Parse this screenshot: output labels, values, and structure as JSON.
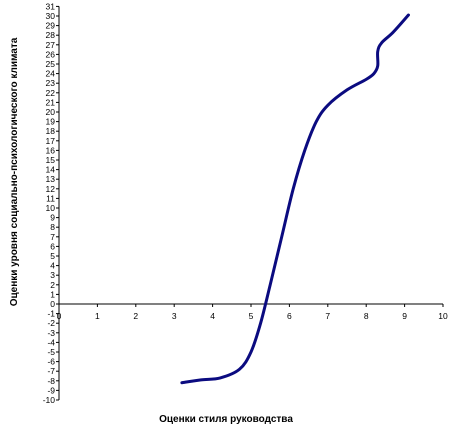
{
  "chart_data": {
    "type": "line",
    "title": "",
    "xlabel": "Оценки стиля руководства",
    "ylabel": "Оценки уровня социально-психологического климата",
    "xlim": [
      0,
      10
    ],
    "ylim": [
      -10,
      31
    ],
    "x_ticks": [
      0,
      1,
      2,
      3,
      4,
      5,
      6,
      7,
      8,
      9,
      10
    ],
    "y_ticks": [
      -10,
      -9,
      -8,
      -7,
      -6,
      -5,
      -4,
      -3,
      -2,
      -1,
      0,
      1,
      2,
      3,
      4,
      5,
      6,
      7,
      8,
      9,
      10,
      11,
      12,
      13,
      14,
      15,
      16,
      17,
      18,
      19,
      20,
      21,
      22,
      23,
      24,
      25,
      26,
      27,
      28,
      29,
      30,
      31
    ],
    "grid": false,
    "series": [
      {
        "color": "#0b0b80",
        "x": [
          3.2,
          3.7,
          4.2,
          4.7,
          5.0,
          5.25,
          5.5,
          5.8,
          6.1,
          6.4,
          6.7,
          7.0,
          7.5,
          8.0,
          8.2,
          8.3,
          8.3,
          8.4,
          8.7,
          9.1
        ],
        "y": [
          -8.2,
          -7.9,
          -7.7,
          -6.8,
          -5.0,
          -2.0,
          2.0,
          7.0,
          12.0,
          16.0,
          19.0,
          20.7,
          22.3,
          23.4,
          24.0,
          24.8,
          26.3,
          27.2,
          28.3,
          30.1
        ]
      }
    ]
  }
}
